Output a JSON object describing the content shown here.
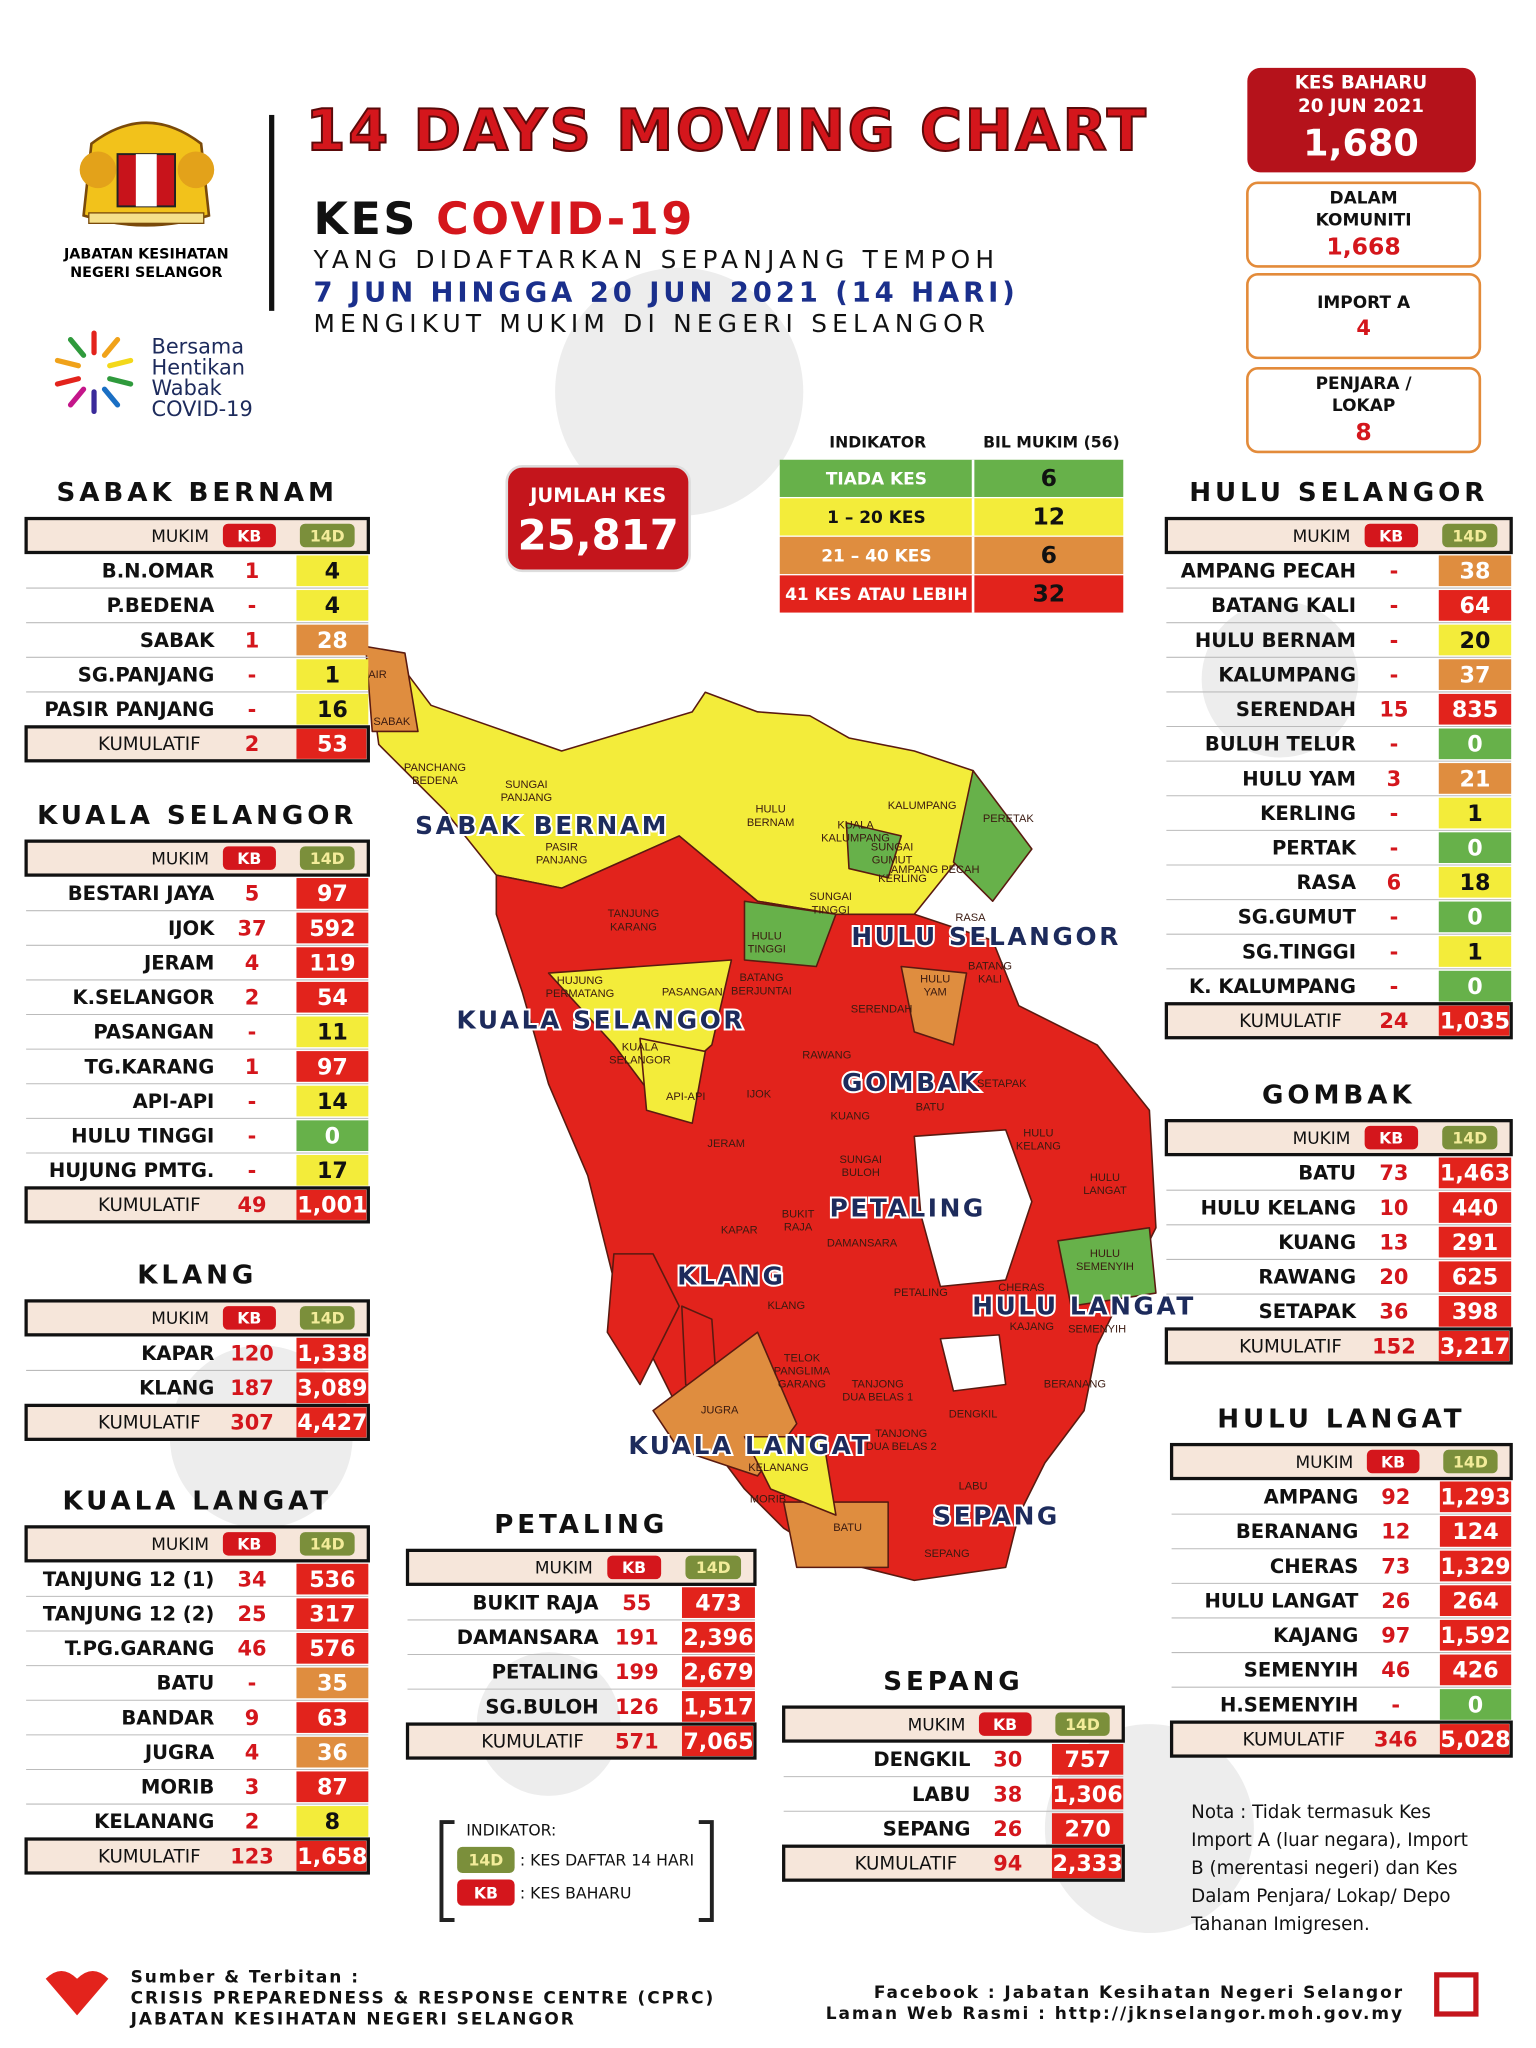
{
  "header": {
    "title": "14 DAYS MOVING CHART",
    "kes": "KES",
    "covid": "COVID-19",
    "line1": "YANG DIDAFTARKAN SEPANJANG TEMPOH",
    "line2": "7 JUN HINGGA 20 JUN 2021 (14 HARI)",
    "line3": "MENGIKUT MUKIM DI NEGERI SELANGOR"
  },
  "logo": {
    "org": [
      "JABATAN KESIHATAN",
      "NEGERI SELANGOR"
    ],
    "campaign": [
      "Bersama",
      "Hentikan",
      "Wabak",
      "COVID-19"
    ]
  },
  "summary": {
    "new": {
      "label": [
        "KES BAHARU",
        "20 JUN 2021"
      ],
      "value": "1,680"
    },
    "items": [
      {
        "label": [
          "DALAM",
          "KOMUNITI"
        ],
        "value": "1,668"
      },
      {
        "label": [
          "IMPORT A"
        ],
        "value": "4"
      },
      {
        "label": [
          "PENJARA /",
          "LOKAP"
        ],
        "value": "8"
      }
    ]
  },
  "total": {
    "label": "JUMLAH KES",
    "value": "25,817"
  },
  "indicator": {
    "headers": [
      "INDIKATOR",
      "BIL MUKIM (56)"
    ],
    "rows": [
      {
        "label": "TIADA KES",
        "count": "6",
        "color": "#67b14a"
      },
      {
        "label": "1 – 20 KES",
        "count": "12",
        "color": "#f3ec3a"
      },
      {
        "label": "21 – 40 KES",
        "count": "6",
        "color": "#df8d3f"
      },
      {
        "label": "41 KES ATAU LEBIH",
        "count": "32",
        "color": "#e2231c"
      }
    ]
  },
  "table_headers": [
    "MUKIM",
    "KB",
    "14D"
  ],
  "cumulative_label": "KUMULATIF",
  "total_color": "#e2231c",
  "tables": [
    {
      "title": "SABAK BERNAM",
      "rows": [
        [
          "B.N.OMAR",
          "1",
          "4",
          "#f3ec3a"
        ],
        [
          "P.BEDENA",
          "-",
          "4",
          "#f3ec3a"
        ],
        [
          "SABAK",
          "1",
          "28",
          "#df8d3f"
        ],
        [
          "SG.PANJANG",
          "-",
          "1",
          "#f3ec3a"
        ],
        [
          "PASIR PANJANG",
          "-",
          "16",
          "#f3ec3a"
        ]
      ],
      "total": [
        "2",
        "53"
      ]
    },
    {
      "title": "KUALA SELANGOR",
      "rows": [
        [
          "BESTARI JAYA",
          "5",
          "97",
          "#e2231c"
        ],
        [
          "IJOK",
          "37",
          "592",
          "#e2231c"
        ],
        [
          "JERAM",
          "4",
          "119",
          "#e2231c"
        ],
        [
          "K.SELANGOR",
          "2",
          "54",
          "#e2231c"
        ],
        [
          "PASANGAN",
          "-",
          "11",
          "#f3ec3a"
        ],
        [
          "TG.KARANG",
          "1",
          "97",
          "#e2231c"
        ],
        [
          "API-API",
          "-",
          "14",
          "#f3ec3a"
        ],
        [
          "HULU TINGGI",
          "-",
          "0",
          "#67b14a"
        ],
        [
          "HUJUNG PMTG.",
          "-",
          "17",
          "#f3ec3a"
        ]
      ],
      "total": [
        "49",
        "1,001"
      ]
    },
    {
      "title": "KLANG",
      "rows": [
        [
          "KAPAR",
          "120",
          "1,338",
          "#e2231c"
        ],
        [
          "KLANG",
          "187",
          "3,089",
          "#e2231c"
        ]
      ],
      "total": [
        "307",
        "4,427"
      ]
    },
    {
      "title": "KUALA LANGAT",
      "rows": [
        [
          "TANJUNG 12 (1)",
          "34",
          "536",
          "#e2231c"
        ],
        [
          "TANJUNG 12 (2)",
          "25",
          "317",
          "#e2231c"
        ],
        [
          "T.PG.GARANG",
          "46",
          "576",
          "#e2231c"
        ],
        [
          "BATU",
          "-",
          "35",
          "#df8d3f"
        ],
        [
          "BANDAR",
          "9",
          "63",
          "#e2231c"
        ],
        [
          "JUGRA",
          "4",
          "36",
          "#df8d3f"
        ],
        [
          "MORIB",
          "3",
          "87",
          "#e2231c"
        ],
        [
          "KELANANG",
          "2",
          "8",
          "#f3ec3a"
        ]
      ],
      "total": [
        "123",
        "1,658"
      ]
    },
    {
      "title": "PETALING",
      "rows": [
        [
          "BUKIT RAJA",
          "55",
          "473",
          "#e2231c"
        ],
        [
          "DAMANSARA",
          "191",
          "2,396",
          "#e2231c"
        ],
        [
          "PETALING",
          "199",
          "2,679",
          "#e2231c"
        ],
        [
          "SG.BULOH",
          "126",
          "1,517",
          "#e2231c"
        ]
      ],
      "total": [
        "571",
        "7,065"
      ]
    },
    {
      "title": "SEPANG",
      "rows": [
        [
          "DENGKIL",
          "30",
          "757",
          "#e2231c"
        ],
        [
          "LABU",
          "38",
          "1,306",
          "#e2231c"
        ],
        [
          "SEPANG",
          "26",
          "270",
          "#e2231c"
        ]
      ],
      "total": [
        "94",
        "2,333"
      ]
    },
    {
      "title": "HULU SELANGOR",
      "rows": [
        [
          "AMPANG PECAH",
          "-",
          "38",
          "#df8d3f"
        ],
        [
          "BATANG KALI",
          "-",
          "64",
          "#e2231c"
        ],
        [
          "HULU BERNAM",
          "-",
          "20",
          "#f3ec3a"
        ],
        [
          "KALUMPANG",
          "-",
          "37",
          "#df8d3f"
        ],
        [
          "SERENDAH",
          "15",
          "835",
          "#e2231c"
        ],
        [
          "BULUH TELUR",
          "-",
          "0",
          "#67b14a"
        ],
        [
          "HULU YAM",
          "3",
          "21",
          "#df8d3f"
        ],
        [
          "KERLING",
          "-",
          "1",
          "#f3ec3a"
        ],
        [
          "PERTAK",
          "-",
          "0",
          "#67b14a"
        ],
        [
          "RASA",
          "6",
          "18",
          "#f3ec3a"
        ],
        [
          "SG.GUMUT",
          "-",
          "0",
          "#67b14a"
        ],
        [
          "SG.TINGGI",
          "-",
          "1",
          "#f3ec3a"
        ],
        [
          "K. KALUMPANG",
          "-",
          "0",
          "#67b14a"
        ]
      ],
      "total": [
        "24",
        "1,035"
      ]
    },
    {
      "title": "GOMBAK",
      "rows": [
        [
          "BATU",
          "73",
          "1,463",
          "#e2231c"
        ],
        [
          "HULU KELANG",
          "10",
          "440",
          "#e2231c"
        ],
        [
          "KUANG",
          "13",
          "291",
          "#e2231c"
        ],
        [
          "RAWANG",
          "20",
          "625",
          "#e2231c"
        ],
        [
          "SETAPAK",
          "36",
          "398",
          "#e2231c"
        ]
      ],
      "total": [
        "152",
        "3,217"
      ]
    },
    {
      "title": "HULU LANGAT",
      "rows": [
        [
          "AMPANG",
          "92",
          "1,293",
          "#e2231c"
        ],
        [
          "BERANANG",
          "12",
          "124",
          "#e2231c"
        ],
        [
          "CHERAS",
          "73",
          "1,329",
          "#e2231c"
        ],
        [
          "HULU LANGAT",
          "26",
          "264",
          "#e2231c"
        ],
        [
          "KAJANG",
          "97",
          "1,592",
          "#e2231c"
        ],
        [
          "SEMENYIH",
          "46",
          "426",
          "#e2231c"
        ],
        [
          "H.SEMENYIH",
          "-",
          "0",
          "#67b14a"
        ]
      ],
      "total": [
        "346",
        "5,028"
      ]
    }
  ],
  "map": {
    "districts": [
      "SABAK BERNAM",
      "HULU SELANGOR",
      "KUALA SELANGOR",
      "GOMBAK",
      "PETALING",
      "KLANG",
      "HULU LANGAT",
      "KUALA LANGAT",
      "SEPANG"
    ],
    "mukims": [
      [
        "AIR"
      ],
      [
        "SABAK"
      ],
      [
        "PANCHANG",
        "BEDENA"
      ],
      [
        "SUNGAI",
        "PANJANG"
      ],
      [
        "PASIR",
        "PANJANG"
      ],
      [
        "HULU",
        "BERNAM"
      ],
      [
        "KALUMPANG"
      ],
      [
        "KUALA",
        "KALUMPANG"
      ],
      [
        "SUNGAI",
        "GUMUT"
      ],
      [
        "PERETAK"
      ],
      [
        "AMPANG PECAH"
      ],
      [
        "KERLING"
      ],
      [
        "SUNGAI",
        "TINGGI"
      ],
      [
        "RASA"
      ],
      [
        "HULU",
        "TINGGI"
      ],
      [
        "TANJUNG",
        "KARANG"
      ],
      [
        "BATANG",
        "KALI"
      ],
      [
        "HULU",
        "YAM"
      ],
      [
        "HUJUNG",
        "PERMATANG"
      ],
      [
        "PASANGAN"
      ],
      [
        "BATANG",
        "BERJUNTAI"
      ],
      [
        "SERENDAH"
      ],
      [
        "KUALA",
        "SELANGOR"
      ],
      [
        "RAWANG"
      ],
      [
        "API-API"
      ],
      [
        "IJOK"
      ],
      [
        "SETAPAK"
      ],
      [
        "KUANG"
      ],
      [
        "BATU"
      ],
      [
        "HULU",
        "KELANG"
      ],
      [
        "SUNGAI",
        "BULOH"
      ],
      [
        "JERAM"
      ],
      [
        "HULU",
        "LANGAT"
      ],
      [
        "BUKIT",
        "RAJA"
      ],
      [
        "KAPAR"
      ],
      [
        "DAMANSARA"
      ],
      [
        "HULU",
        "SEMENYIH"
      ],
      [
        "KLANG"
      ],
      [
        "PETALING"
      ],
      [
        "CHERAS"
      ],
      [
        "KAJANG"
      ],
      [
        "SEMENYIH"
      ],
      [
        "BERANANG"
      ],
      [
        "TELOK",
        "PANGLIMA",
        "GARANG"
      ],
      [
        "TANJONG",
        "DUA BELAS 1"
      ],
      [
        "TANJONG",
        "DUA BELAS 2"
      ],
      [
        "JUGRA"
      ],
      [
        "DENGKIL"
      ],
      [
        "KELANANG"
      ],
      [
        "MORIB"
      ],
      [
        "LABU"
      ],
      [
        "BATU"
      ],
      [
        "SEPANG"
      ]
    ]
  },
  "legend": {
    "title": "INDIKATOR:",
    "items": [
      {
        "tag": "14D",
        "text": ": KES DAFTAR 14 HARI",
        "color": "#7b8f3b"
      },
      {
        "tag": "KB",
        "text": ": KES BAHARU",
        "color": "#d4161c"
      }
    ]
  },
  "note": [
    "Nota  :  Tidak  termasuk  Kes",
    "Import A (luar negara), Import",
    "B (merentasi negeri) dan Kes",
    "Dalam Penjara/ Lokap/ Depo",
    "Tahanan Imigresen."
  ],
  "footer": {
    "left": [
      "Sumber & Terbitan :",
      "CRISIS PREPAREDNESS & RESPONSE CENTRE (CPRC)",
      "JABATAN KESIHATAN NEGERI SELANGOR"
    ],
    "right": [
      "Facebook : Jabatan Kesihatan Negeri Selangor",
      "Laman Web Rasmi : http://jknselangor.moh.gov.my"
    ]
  }
}
